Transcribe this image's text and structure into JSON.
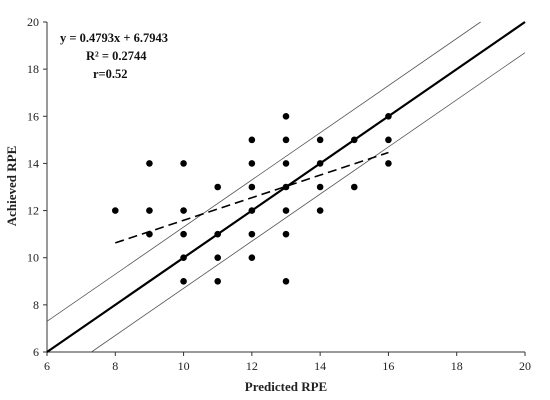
{
  "chart_data": {
    "type": "scatter",
    "title": "",
    "xlabel": "Predicted RPE",
    "ylabel": "Achieved RPE",
    "xlim": [
      6,
      20
    ],
    "ylim": [
      6,
      20
    ],
    "xticks": [
      6,
      8,
      10,
      12,
      14,
      16,
      18,
      20
    ],
    "yticks": [
      6,
      8,
      10,
      12,
      14,
      16,
      18,
      20
    ],
    "grid": false,
    "annotations": {
      "equation": "y = 0.4793x + 6.7943",
      "r_squared": "R² = 0.2744",
      "r": "r=0.52"
    },
    "points": [
      [
        8,
        12
      ],
      [
        9,
        14
      ],
      [
        9,
        12
      ],
      [
        9,
        11
      ],
      [
        10,
        14
      ],
      [
        10,
        12
      ],
      [
        10,
        11
      ],
      [
        10,
        10
      ],
      [
        10,
        9
      ],
      [
        11,
        13
      ],
      [
        11,
        11
      ],
      [
        11,
        10
      ],
      [
        11,
        9
      ],
      [
        12,
        15
      ],
      [
        12,
        14
      ],
      [
        12,
        13
      ],
      [
        12,
        12
      ],
      [
        12,
        11
      ],
      [
        12,
        10
      ],
      [
        13,
        16
      ],
      [
        13,
        15
      ],
      [
        13,
        14
      ],
      [
        13,
        13
      ],
      [
        13,
        12
      ],
      [
        13,
        11
      ],
      [
        13,
        9
      ],
      [
        14,
        15
      ],
      [
        14,
        14
      ],
      [
        14,
        13
      ],
      [
        14,
        12
      ],
      [
        15,
        15
      ],
      [
        15,
        13
      ],
      [
        16,
        16
      ],
      [
        16,
        15
      ],
      [
        16,
        14
      ]
    ],
    "trendline": {
      "slope": 0.4793,
      "intercept": 6.7943,
      "x_range": [
        8,
        16
      ],
      "style": "dashed"
    },
    "identity_line": {
      "slope": 1,
      "intercept": 0,
      "x_range": [
        6,
        20
      ],
      "style": "solid-bold"
    },
    "bounds": [
      {
        "slope": 1,
        "intercept": 1.3,
        "x_range": [
          6,
          18.7
        ],
        "style": "thin"
      },
      {
        "slope": 1,
        "intercept": -1.3,
        "x_range": [
          7.3,
          20
        ],
        "style": "thin"
      }
    ]
  }
}
